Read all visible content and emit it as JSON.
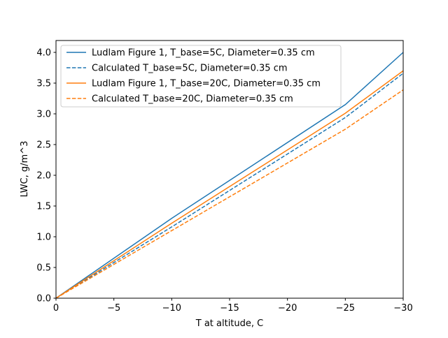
{
  "chart_data": {
    "type": "line",
    "title": "",
    "xlabel": "T at altitude, C",
    "ylabel": "LWC, g/m^3",
    "xlim": [
      0,
      -30
    ],
    "ylim": [
      0,
      4.2
    ],
    "xticks": [
      0,
      -5,
      -10,
      -15,
      -20,
      -25,
      -30
    ],
    "xtick_labels": [
      "0",
      "−5",
      "−10",
      "−15",
      "−20",
      "−25",
      "−30"
    ],
    "yticks": [
      0,
      0.5,
      1,
      1.5,
      2,
      2.5,
      3,
      3.5,
      4
    ],
    "ytick_labels": [
      "0.0",
      "0.5",
      "1.0",
      "1.5",
      "2.0",
      "2.5",
      "3.0",
      "3.5",
      "4.0"
    ],
    "grid": false,
    "legend_position": "top-left",
    "series": [
      {
        "name": "Ludlam Figure 1, T_base=5C, Diameter=0.35 cm",
        "color": "#1f77b4",
        "dash": false,
        "x": [
          0,
          -10,
          -25,
          -30
        ],
        "y": [
          0,
          1.3,
          3.15,
          4.0
        ]
      },
      {
        "name": "Calculated T_base=5C, Diameter=0.35 cm",
        "color": "#1f77b4",
        "dash": true,
        "x": [
          0,
          -10,
          -25,
          -30
        ],
        "y": [
          0,
          1.16,
          2.94,
          3.66
        ]
      },
      {
        "name": "Ludlam Figure 1, T_base=20C, Diameter=0.35 cm",
        "color": "#ff7f0e",
        "dash": false,
        "x": [
          0,
          -10,
          -25,
          -30
        ],
        "y": [
          0,
          1.22,
          3.01,
          3.7
        ]
      },
      {
        "name": "Calculated T_base=20C, Diameter=0.35 cm",
        "color": "#ff7f0e",
        "dash": true,
        "x": [
          0,
          -10,
          -25,
          -30
        ],
        "y": [
          0,
          1.1,
          2.75,
          3.39
        ]
      }
    ]
  }
}
